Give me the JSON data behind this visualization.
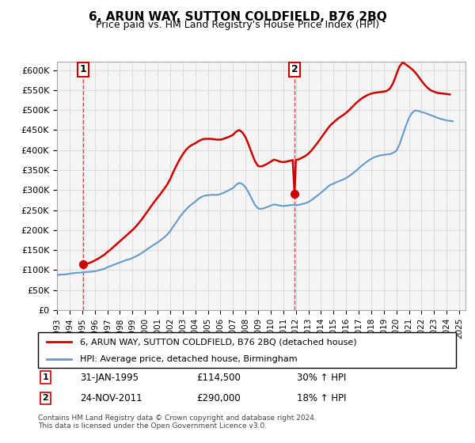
{
  "title": "6, ARUN WAY, SUTTON COLDFIELD, B76 2BQ",
  "subtitle": "Price paid vs. HM Land Registry's House Price Index (HPI)",
  "legend_line1": "6, ARUN WAY, SUTTON COLDFIELD, B76 2BQ (detached house)",
  "legend_line2": "HPI: Average price, detached house, Birmingham",
  "annotation1_label": "1",
  "annotation1_date": "31-JAN-1995",
  "annotation1_price": "£114,500",
  "annotation1_hpi": "30% ↑ HPI",
  "annotation2_label": "2",
  "annotation2_date": "24-NOV-2011",
  "annotation2_price": "£290,000",
  "annotation2_hpi": "18% ↑ HPI",
  "footnote": "Contains HM Land Registry data © Crown copyright and database right 2024.\nThis data is licensed under the Open Government Licence v3.0.",
  "sale1_x": 1995.08,
  "sale1_y": 114500,
  "sale2_x": 2011.9,
  "sale2_y": 290000,
  "vline1_x": 1995.08,
  "vline2_x": 2011.9,
  "hpi_color": "#6699cc",
  "price_color": "#cc0000",
  "grid_color": "#dddddd",
  "background_color": "#f5f5f5",
  "ylim": [
    0,
    620000
  ],
  "xlim": [
    1993,
    2025.5
  ],
  "yticks": [
    0,
    50000,
    100000,
    150000,
    200000,
    250000,
    300000,
    350000,
    400000,
    450000,
    500000,
    550000,
    600000
  ],
  "xtick_years": [
    1993,
    1994,
    1995,
    1996,
    1997,
    1998,
    1999,
    2000,
    2001,
    2002,
    2003,
    2004,
    2005,
    2006,
    2007,
    2008,
    2009,
    2010,
    2011,
    2012,
    2013,
    2014,
    2015,
    2016,
    2017,
    2018,
    2019,
    2020,
    2021,
    2022,
    2023,
    2024,
    2025
  ],
  "hpi_data_x": [
    1993.0,
    1993.25,
    1993.5,
    1993.75,
    1994.0,
    1994.25,
    1994.5,
    1994.75,
    1995.0,
    1995.25,
    1995.5,
    1995.75,
    1996.0,
    1996.25,
    1996.5,
    1996.75,
    1997.0,
    1997.25,
    1997.5,
    1997.75,
    1998.0,
    1998.25,
    1998.5,
    1998.75,
    1999.0,
    1999.25,
    1999.5,
    1999.75,
    2000.0,
    2000.25,
    2000.5,
    2000.75,
    2001.0,
    2001.25,
    2001.5,
    2001.75,
    2002.0,
    2002.25,
    2002.5,
    2002.75,
    2003.0,
    2003.25,
    2003.5,
    2003.75,
    2004.0,
    2004.25,
    2004.5,
    2004.75,
    2005.0,
    2005.25,
    2005.5,
    2005.75,
    2006.0,
    2006.25,
    2006.5,
    2006.75,
    2007.0,
    2007.25,
    2007.5,
    2007.75,
    2008.0,
    2008.25,
    2008.5,
    2008.75,
    2009.0,
    2009.25,
    2009.5,
    2009.75,
    2010.0,
    2010.25,
    2010.5,
    2010.75,
    2011.0,
    2011.25,
    2011.5,
    2011.75,
    2012.0,
    2012.25,
    2012.5,
    2012.75,
    2013.0,
    2013.25,
    2013.5,
    2013.75,
    2014.0,
    2014.25,
    2014.5,
    2014.75,
    2015.0,
    2015.25,
    2015.5,
    2015.75,
    2016.0,
    2016.25,
    2016.5,
    2016.75,
    2017.0,
    2017.25,
    2017.5,
    2017.75,
    2018.0,
    2018.25,
    2018.5,
    2018.75,
    2019.0,
    2019.25,
    2019.5,
    2019.75,
    2020.0,
    2020.25,
    2020.5,
    2020.75,
    2021.0,
    2021.25,
    2021.5,
    2021.75,
    2022.0,
    2022.25,
    2022.5,
    2022.75,
    2023.0,
    2023.25,
    2023.5,
    2023.75,
    2024.0,
    2024.25,
    2024.5
  ],
  "hpi_data_y": [
    88000,
    88500,
    89000,
    89500,
    91000,
    92000,
    93000,
    93500,
    94000,
    95000,
    95500,
    96000,
    97000,
    99000,
    101000,
    103000,
    107000,
    110000,
    113000,
    116000,
    119000,
    122000,
    125000,
    127000,
    130000,
    134000,
    138000,
    143000,
    148000,
    154000,
    159000,
    164000,
    169000,
    175000,
    181000,
    188000,
    197000,
    209000,
    220000,
    232000,
    242000,
    251000,
    259000,
    265000,
    271000,
    278000,
    283000,
    286000,
    287000,
    288000,
    288000,
    288000,
    290000,
    293000,
    297000,
    301000,
    305000,
    313000,
    318000,
    315000,
    307000,
    294000,
    278000,
    263000,
    254000,
    253000,
    255000,
    258000,
    261000,
    264000,
    263000,
    261000,
    260000,
    261000,
    262000,
    263000,
    262000,
    263000,
    265000,
    267000,
    270000,
    275000,
    281000,
    287000,
    293000,
    300000,
    307000,
    313000,
    316000,
    320000,
    323000,
    326000,
    330000,
    335000,
    341000,
    347000,
    354000,
    361000,
    367000,
    373000,
    378000,
    382000,
    385000,
    387000,
    388000,
    389000,
    390000,
    393000,
    398000,
    414000,
    437000,
    460000,
    480000,
    493000,
    499000,
    498000,
    495000,
    493000,
    490000,
    487000,
    484000,
    481000,
    478000,
    476000,
    474000,
    473000,
    472000
  ],
  "price_data_x": [
    1993.0,
    1993.25,
    1993.5,
    1993.75,
    1994.0,
    1994.25,
    1994.5,
    1994.75,
    1995.08,
    1995.25,
    1995.5,
    1995.75,
    1996.0,
    1996.25,
    1996.5,
    1996.75,
    1997.0,
    1997.25,
    1997.5,
    1997.75,
    1998.0,
    1998.25,
    1998.5,
    1998.75,
    1999.0,
    1999.25,
    1999.5,
    1999.75,
    2000.0,
    2000.25,
    2000.5,
    2000.75,
    2001.0,
    2001.25,
    2001.5,
    2001.75,
    2002.0,
    2002.25,
    2002.5,
    2002.75,
    2003.0,
    2003.25,
    2003.5,
    2003.75,
    2004.0,
    2004.25,
    2004.5,
    2004.75,
    2005.0,
    2005.25,
    2005.5,
    2005.75,
    2006.0,
    2006.25,
    2006.5,
    2006.75,
    2007.0,
    2007.25,
    2007.5,
    2007.75,
    2008.0,
    2008.25,
    2008.5,
    2008.75,
    2009.0,
    2009.25,
    2009.5,
    2009.75,
    2010.0,
    2010.25,
    2010.5,
    2010.75,
    2011.0,
    2011.25,
    2011.5,
    2011.75,
    2011.9,
    2012.0,
    2012.25,
    2012.5,
    2012.75,
    2013.0,
    2013.25,
    2013.5,
    2013.75,
    2014.0,
    2014.25,
    2014.5,
    2014.75,
    2015.0,
    2015.25,
    2015.5,
    2015.75,
    2016.0,
    2016.25,
    2016.5,
    2016.75,
    2017.0,
    2017.25,
    2017.5,
    2017.75,
    2018.0,
    2018.25,
    2018.5,
    2018.75,
    2019.0,
    2019.25,
    2019.5,
    2019.75,
    2020.0,
    2020.25,
    2020.5,
    2020.75,
    2021.0,
    2021.25,
    2021.5,
    2021.75,
    2022.0,
    2022.25,
    2022.5,
    2022.75,
    2023.0,
    2023.25,
    2023.5,
    2023.75,
    2024.0,
    2024.25,
    2024.5
  ],
  "price_data_y": [
    null,
    null,
    null,
    null,
    null,
    null,
    null,
    null,
    114500,
    115000,
    117000,
    120000,
    124000,
    128000,
    133000,
    138000,
    145000,
    151000,
    158000,
    165000,
    172000,
    179000,
    186000,
    193000,
    200000,
    208000,
    217000,
    227000,
    238000,
    249000,
    260000,
    271000,
    281000,
    291000,
    302000,
    313000,
    327000,
    345000,
    361000,
    376000,
    389000,
    400000,
    408000,
    413000,
    417000,
    422000,
    426000,
    428000,
    428000,
    428000,
    427000,
    426000,
    426000,
    428000,
    431000,
    434000,
    438000,
    446000,
    450000,
    444000,
    432000,
    413000,
    392000,
    372000,
    360000,
    359000,
    362000,
    366000,
    371000,
    376000,
    374000,
    371000,
    370000,
    371000,
    373000,
    375000,
    290000,
    375000,
    377000,
    381000,
    385000,
    391000,
    399000,
    409000,
    419000,
    430000,
    441000,
    452000,
    462000,
    469000,
    476000,
    482000,
    487000,
    493000,
    500000,
    508000,
    516000,
    523000,
    529000,
    534000,
    538000,
    541000,
    543000,
    544000,
    545000,
    546000,
    548000,
    554000,
    568000,
    589000,
    609000,
    619000,
    614000,
    608000,
    602000,
    594000,
    584000,
    573000,
    563000,
    555000,
    549000,
    546000,
    543000,
    542000,
    541000,
    540000,
    539000
  ]
}
